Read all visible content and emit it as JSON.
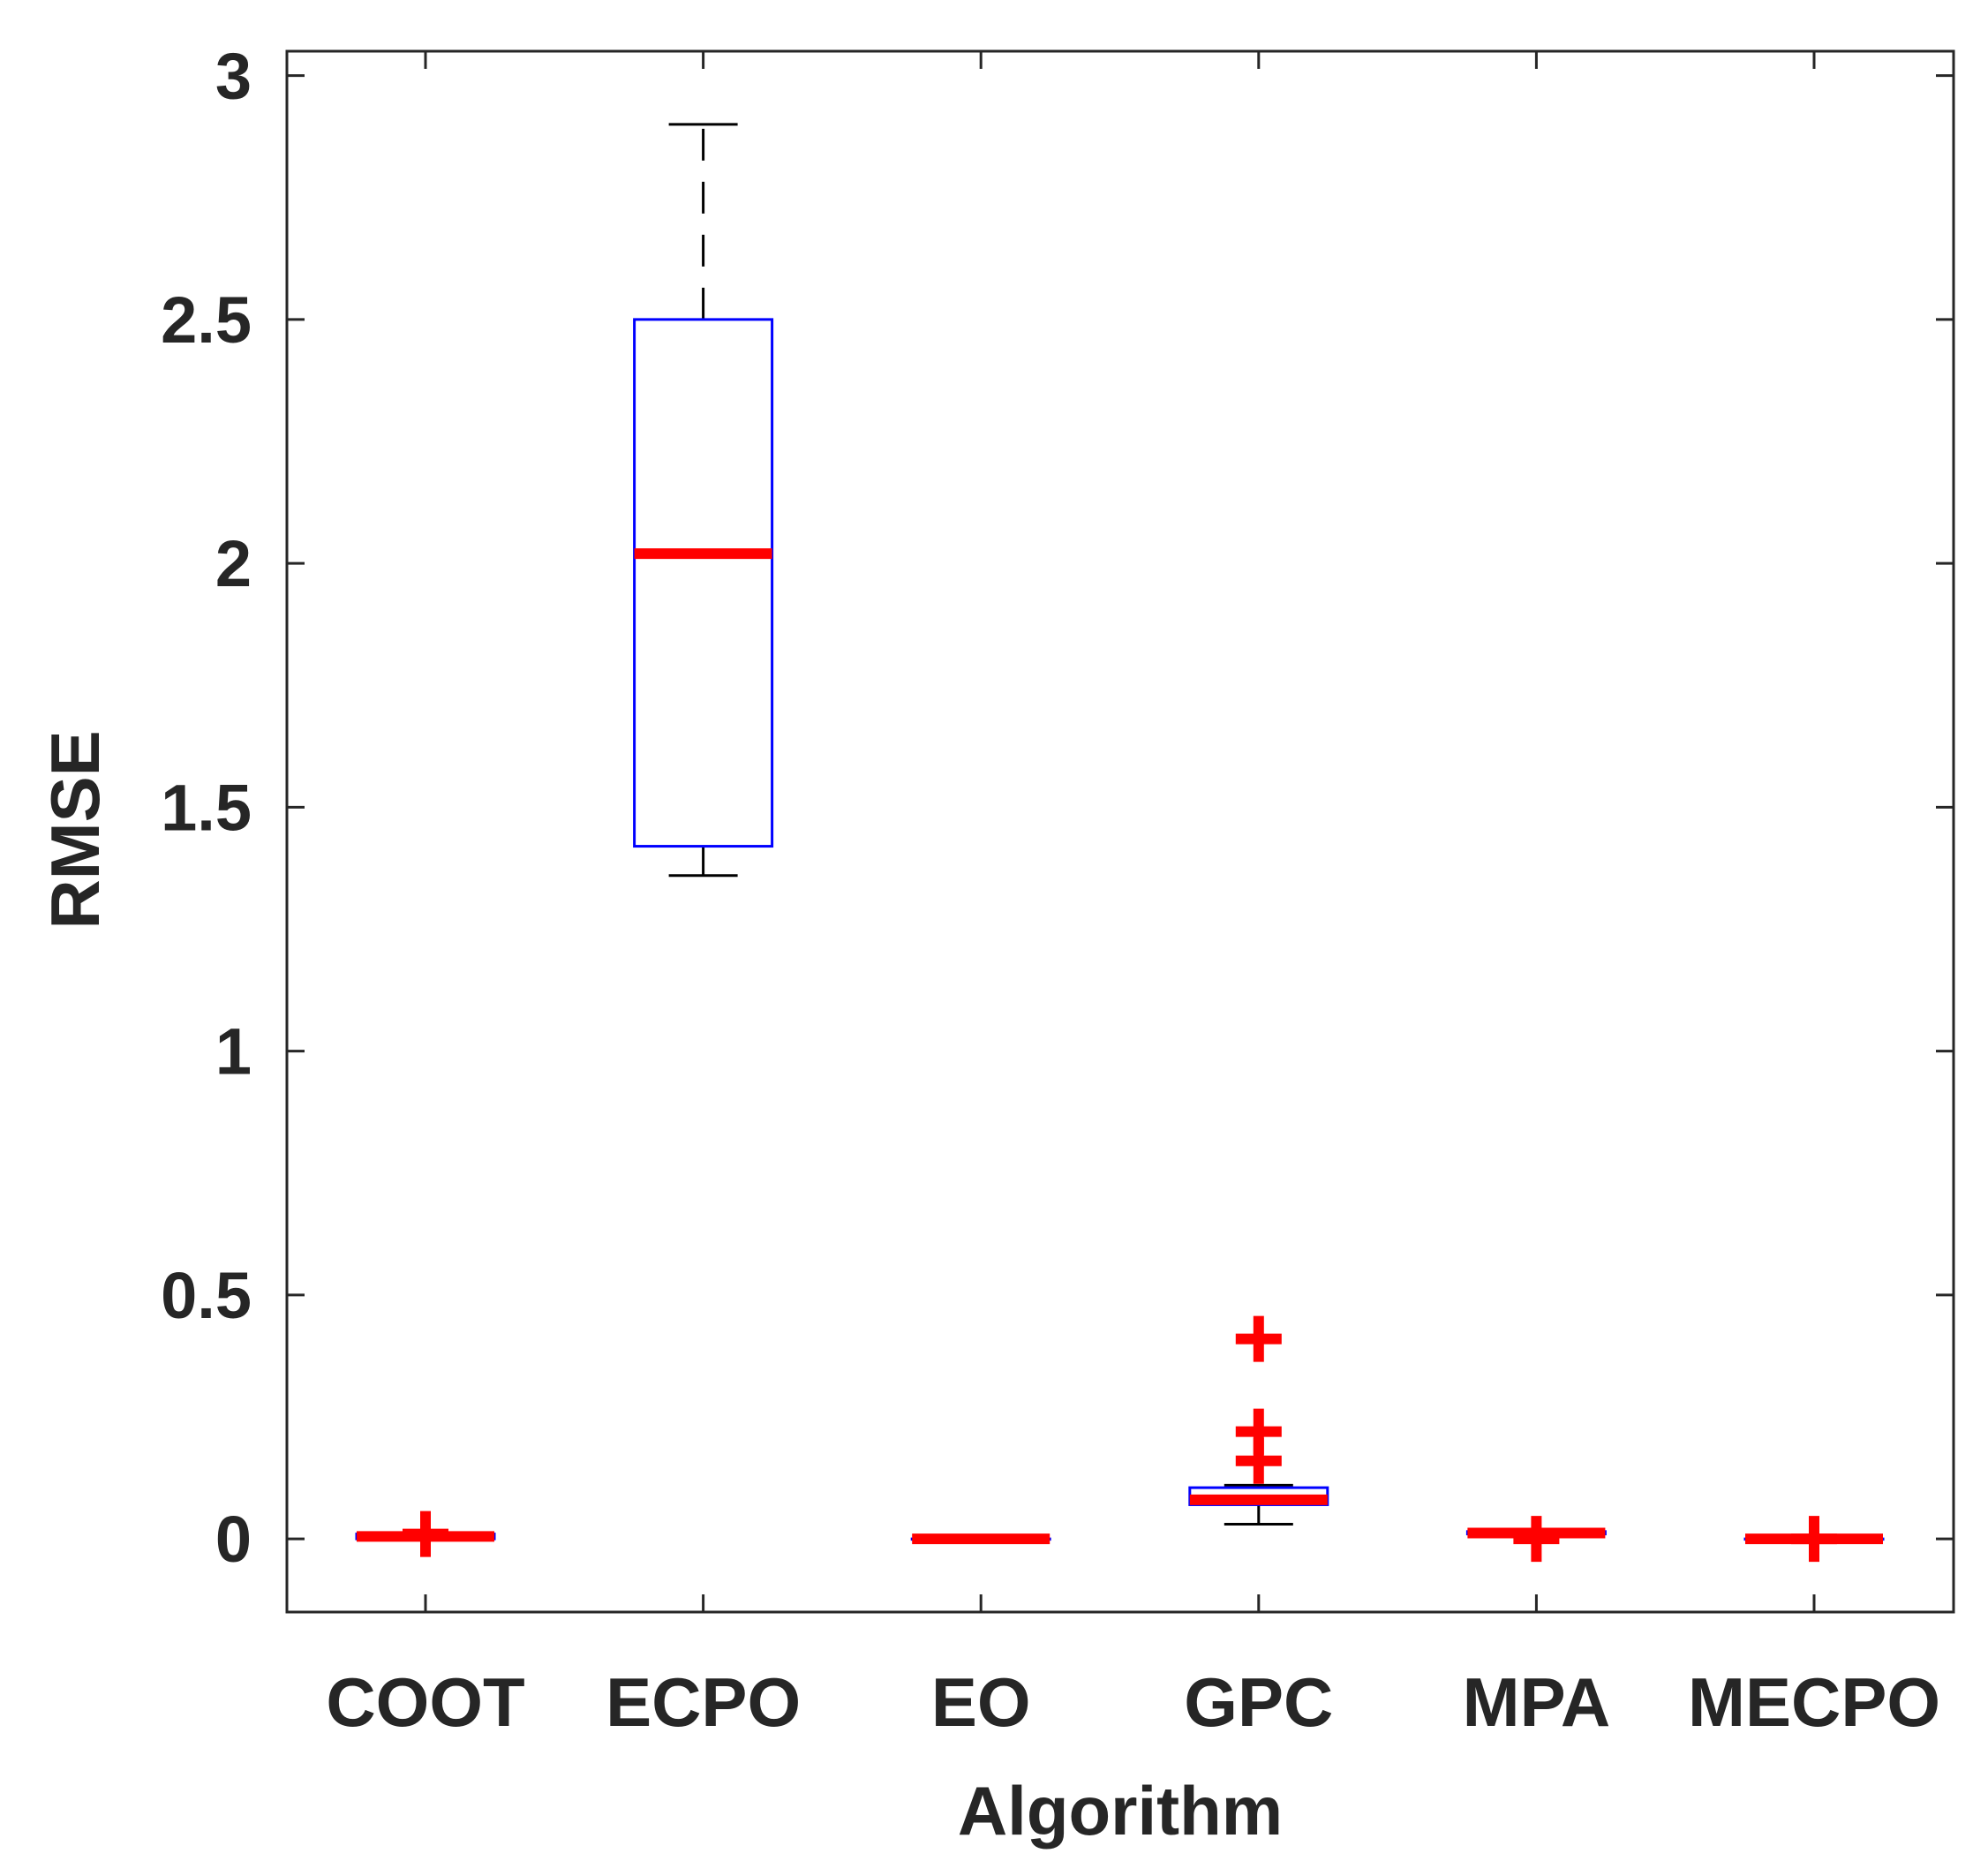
{
  "chart_data": {
    "type": "box",
    "xlabel": "Algorithm",
    "ylabel": "RMSE",
    "ylim": [
      -0.15,
      3.05
    ],
    "yticks": [
      "0",
      "0.5",
      "1",
      "1.5",
      "2",
      "2.5",
      "3"
    ],
    "ytick_values": [
      0,
      0.5,
      1,
      1.5,
      2,
      2.5,
      3
    ],
    "categories": [
      "COOT",
      "ECPO",
      "EO",
      "GPC",
      "MPA",
      "MECPO"
    ],
    "boxes": [
      {
        "name": "COOT",
        "min": 0.0,
        "q1": 0.0,
        "median": 0.005,
        "q3": 0.01,
        "max": 0.01,
        "outliers": [
          0.01
        ]
      },
      {
        "name": "ECPO",
        "min": 1.36,
        "q1": 1.42,
        "median": 2.02,
        "q3": 2.5,
        "max": 2.9,
        "outliers": []
      },
      {
        "name": "EO",
        "min": 0.0,
        "q1": 0.0,
        "median": 0.0,
        "q3": 0.0,
        "max": 0.0,
        "outliers": []
      },
      {
        "name": "GPC",
        "min": 0.03,
        "q1": 0.07,
        "median": 0.08,
        "q3": 0.105,
        "max": 0.11,
        "outliers": [
          0.16,
          0.22,
          0.41
        ]
      },
      {
        "name": "MPA",
        "min": 0.01,
        "q1": 0.01,
        "median": 0.012,
        "q3": 0.015,
        "max": 0.015,
        "outliers": [
          0.0
        ]
      },
      {
        "name": "MECPO",
        "min": 0.0,
        "q1": 0.0,
        "median": 0.0,
        "q3": 0.0,
        "max": 0.0,
        "outliers": [
          0.0
        ]
      }
    ],
    "colors": {
      "box": "#0000ff",
      "median": "#ff0000",
      "whisker": "#000000",
      "outlier": "#ff0000",
      "axis": "#262626"
    },
    "grid": false
  }
}
